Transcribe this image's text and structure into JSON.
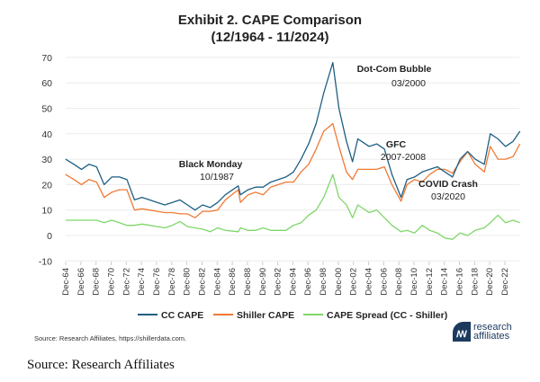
{
  "chart_data": {
    "type": "line",
    "title": "Exhibit 2. CAPE Comparison",
    "subtitle": "(12/1964 - 11/2024)",
    "xlabel": "",
    "ylabel": "",
    "ylim": [
      -10,
      70
    ],
    "yticks": [
      70,
      60,
      50,
      40,
      30,
      20,
      10,
      0,
      -10
    ],
    "xticks": [
      "Dec-64",
      "Dec-66",
      "Dec-68",
      "Dec-70",
      "Dec-72",
      "Dec-74",
      "Dec-76",
      "Dec-78",
      "Dec-80",
      "Dec-82",
      "Dec-84",
      "Dec-86",
      "Dec-88",
      "Dec-90",
      "Dec-92",
      "Dec-94",
      "Dec-96",
      "Dec-98",
      "Dec-00",
      "Dec-02",
      "Dec-04",
      "Dec-06",
      "Dec-08",
      "Dec-10",
      "Dec-12",
      "Dec-14",
      "Dec-16",
      "Dec-18",
      "Dec-20",
      "Dec-22"
    ],
    "grid": true,
    "legend_position": "bottom",
    "x": [
      1964.9,
      1966,
      1967,
      1968,
      1969,
      1970,
      1971,
      1972,
      1973,
      1974,
      1975,
      1976,
      1977,
      1978,
      1979,
      1980,
      1981,
      1982,
      1983,
      1984,
      1985,
      1986,
      1987.7,
      1988,
      1989,
      1990,
      1991,
      1992,
      1993,
      1994,
      1995,
      1996,
      1997,
      1998,
      1999,
      2000.2,
      2001,
      2002,
      2002.8,
      2003.5,
      2004,
      2005,
      2006,
      2007,
      2008,
      2009.2,
      2010,
      2011,
      2012,
      2013,
      2014,
      2015,
      2016,
      2017,
      2018,
      2019,
      2020.2,
      2021,
      2022,
      2023,
      2024,
      2024.9
    ],
    "series": [
      {
        "name": "CC CAPE",
        "color": "#1f5f82",
        "values": [
          30,
          28,
          26,
          28,
          27,
          20,
          23,
          23,
          22,
          14,
          15,
          14,
          13,
          12,
          13,
          14,
          12,
          10,
          12,
          11,
          13,
          16,
          19.5,
          16,
          18,
          19,
          19,
          21,
          22,
          23,
          25,
          30,
          36,
          44,
          56,
          68,
          50,
          37,
          29,
          38,
          37,
          35,
          36,
          34,
          24,
          15,
          22,
          23,
          25,
          26,
          27,
          25,
          23,
          30,
          33,
          30,
          28,
          40,
          38,
          35,
          37,
          41
        ]
      },
      {
        "name": "Shiller CAPE",
        "color": "#f07a35",
        "values": [
          24,
          22,
          20,
          22,
          21,
          15,
          17,
          18,
          18,
          10,
          10.5,
          10,
          9.5,
          9,
          9,
          8.5,
          8.5,
          7,
          9.5,
          9.5,
          10,
          14,
          18,
          13,
          16,
          17,
          16,
          19,
          20,
          21,
          21,
          25,
          28,
          34,
          41,
          44,
          35,
          25,
          22,
          26,
          26,
          26,
          26,
          27,
          20,
          13.5,
          20,
          22,
          21,
          24,
          26,
          26,
          24.5,
          29,
          33,
          28,
          25,
          35,
          30,
          30,
          31,
          36
        ]
      },
      {
        "name": "CAPE Spread (CC - Shiller)",
        "color": "#7fd66a",
        "values": [
          6,
          6,
          6,
          6,
          6,
          5,
          6,
          5,
          4,
          4,
          4.5,
          4,
          3.5,
          3,
          4,
          5.5,
          3.5,
          3,
          2.5,
          1.5,
          3,
          2,
          1.5,
          3,
          2,
          2,
          3,
          2,
          2,
          2,
          4,
          5,
          8,
          10,
          15,
          24,
          15,
          12,
          7,
          12,
          11,
          9,
          10,
          7,
          4,
          1.5,
          2,
          1,
          4,
          2,
          1,
          -1,
          -1.5,
          1,
          0,
          2,
          3,
          5,
          8,
          5,
          6,
          5
        ]
      }
    ],
    "annotations": [
      {
        "label": "Dot-Com Bubble",
        "sub": "03/2000"
      },
      {
        "label": "Black Monday",
        "sub": "10/1987"
      },
      {
        "label": "GFC",
        "sub": "2007-2008"
      },
      {
        "label": "COVID Crash",
        "sub": "03/2020"
      }
    ]
  },
  "source_note": "Source: Research Affiliates, https://shillerdata.com.",
  "caption": "Source: Research Affiliates",
  "logo": {
    "text_line1": "research",
    "text_line2": "affiliates",
    "mark": "RA"
  }
}
